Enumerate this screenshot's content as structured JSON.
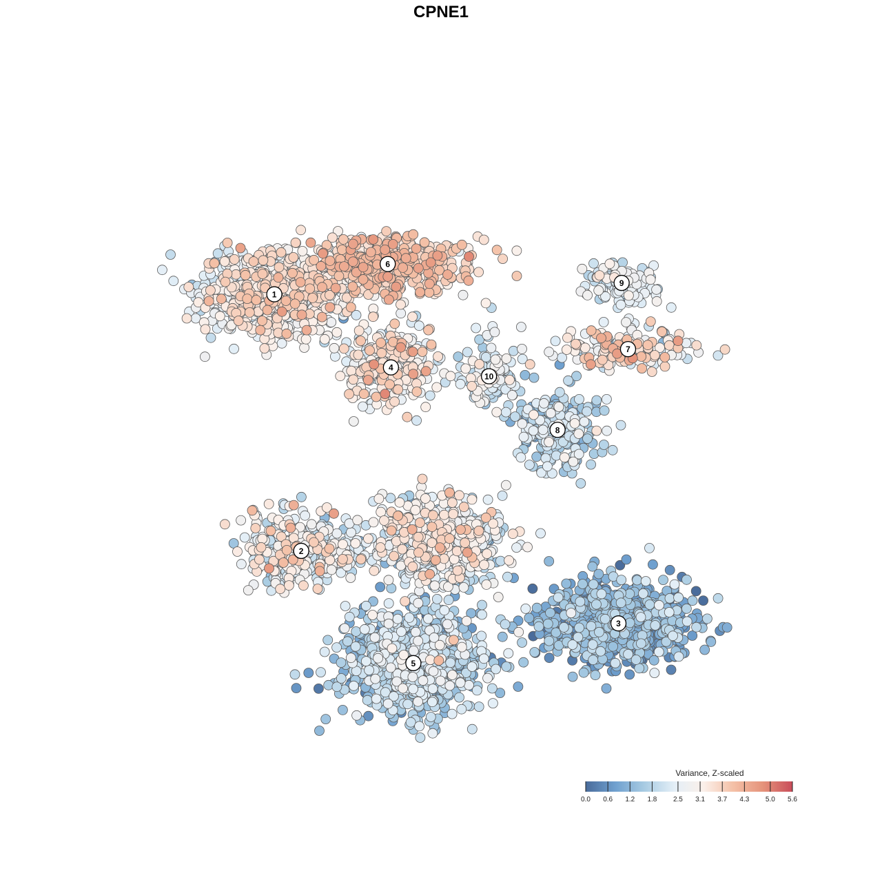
{
  "chart_data": {
    "type": "scatter",
    "title": "CPNE1",
    "xlabel": "",
    "ylabel": "",
    "grid": false,
    "axes_visible": false,
    "x_range": [
      0,
      1
    ],
    "y_range": [
      0,
      1
    ],
    "color_scale": {
      "title": "Variance, Z-scaled",
      "min": 0.0,
      "max": 5.6,
      "ticks": [
        "0.0",
        "0.6",
        "1.2",
        "1.8",
        "2.5",
        "3.1",
        "3.7",
        "4.3",
        "5.0",
        "5.6"
      ],
      "colors": [
        "#4a6c9b",
        "#6fa0cf",
        "#a9cce3",
        "#e4eff7",
        "#fbf0ea",
        "#f4c0a6",
        "#e5937b",
        "#c94d5a"
      ],
      "legend_position": "bottom-right"
    },
    "clusters": [
      {
        "id": "1",
        "x": 0.213,
        "y": 0.73,
        "sx": 0.1,
        "sy": 0.06,
        "n": 750,
        "mean": 2.9,
        "sd": 0.55
      },
      {
        "id": "6",
        "x": 0.39,
        "y": 0.778,
        "sx": 0.11,
        "sy": 0.038,
        "n": 620,
        "mean": 3.5,
        "sd": 0.5
      },
      {
        "id": "9",
        "x": 0.755,
        "y": 0.748,
        "sx": 0.06,
        "sy": 0.028,
        "n": 120,
        "mean": 2.3,
        "sd": 0.5
      },
      {
        "id": "7",
        "x": 0.765,
        "y": 0.643,
        "sx": 0.09,
        "sy": 0.03,
        "n": 170,
        "mean": 3.0,
        "sd": 0.9
      },
      {
        "id": "4",
        "x": 0.395,
        "y": 0.614,
        "sx": 0.06,
        "sy": 0.058,
        "n": 320,
        "mean": 2.9,
        "sd": 0.6
      },
      {
        "id": "10",
        "x": 0.548,
        "y": 0.6,
        "sx": 0.04,
        "sy": 0.05,
        "n": 110,
        "mean": 2.3,
        "sd": 0.6
      },
      {
        "id": "8",
        "x": 0.655,
        "y": 0.515,
        "sx": 0.06,
        "sy": 0.055,
        "n": 230,
        "mean": 1.9,
        "sd": 0.6
      },
      {
        "id": "2",
        "x": 0.255,
        "y": 0.323,
        "sx": 0.085,
        "sy": 0.055,
        "n": 330,
        "mean": 2.6,
        "sd": 0.7
      },
      {
        "id": "3",
        "x": 0.75,
        "y": 0.208,
        "sx": 0.11,
        "sy": 0.06,
        "n": 800,
        "mean": 1.0,
        "sd": 0.6
      },
      {
        "id": "5",
        "x": 0.43,
        "y": 0.145,
        "sx": 0.1,
        "sy": 0.075,
        "n": 900,
        "mean": 1.6,
        "sd": 0.65
      },
      {
        "id": "",
        "x": 0.47,
        "y": 0.335,
        "sx": 0.09,
        "sy": 0.06,
        "n": 650,
        "mean": 2.5,
        "sd": 0.65
      }
    ]
  }
}
